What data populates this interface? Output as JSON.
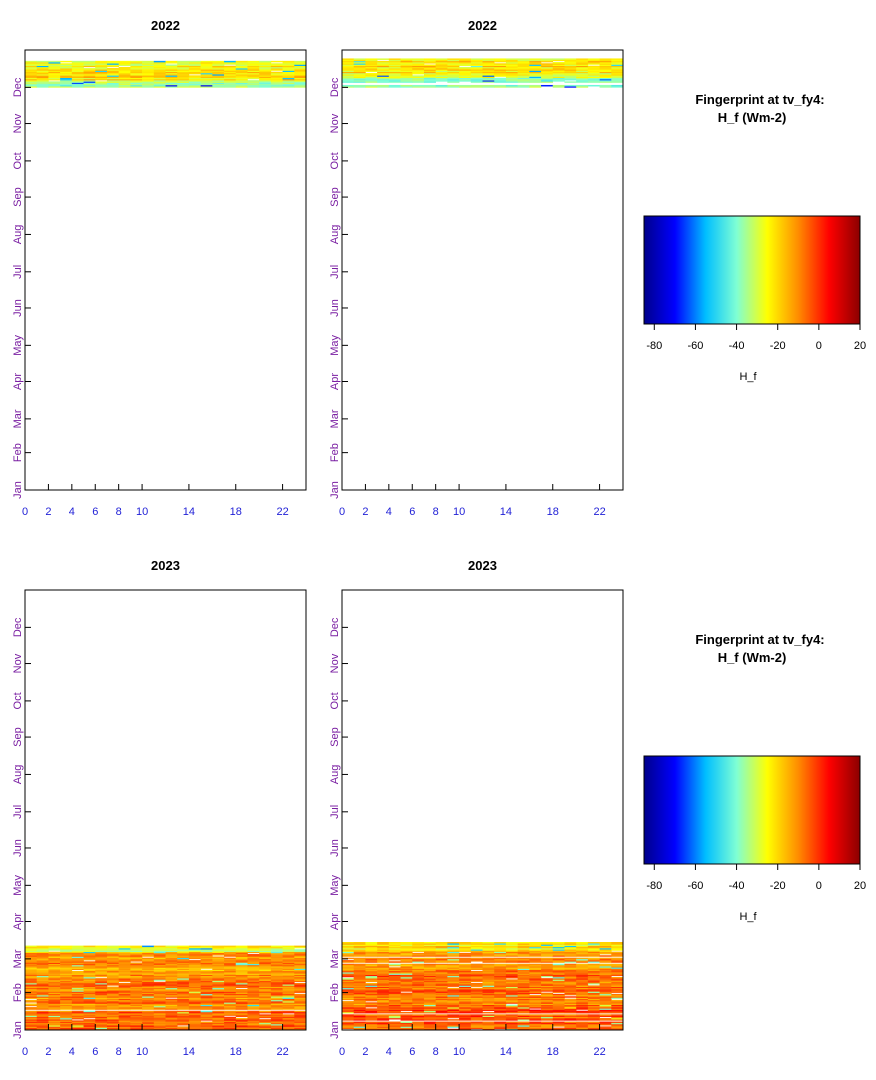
{
  "chart_data": [
    {
      "type": "heatmap",
      "title": "2022",
      "xlabel": "",
      "ylabel": "",
      "x_ticks": [
        "0",
        "2",
        "4",
        "6",
        "8",
        "10",
        "14",
        "18",
        "22"
      ],
      "y_ticks": [
        "Jan",
        "Feb",
        "Mar",
        "Apr",
        "May",
        "Jun",
        "Jul",
        "Aug",
        "Sep",
        "Oct",
        "Nov",
        "Dec"
      ],
      "xlim": [
        0,
        24
      ],
      "ylim": [
        0,
        365
      ],
      "grid": false,
      "data_day_range": [
        334,
        356
      ],
      "value_profile": [
        {
          "day_from": 334,
          "day_to": 340,
          "value": -35
        },
        {
          "day_from": 340,
          "day_to": 348,
          "value": -22
        },
        {
          "day_from": 348,
          "day_to": 356,
          "value": -25
        }
      ]
    },
    {
      "type": "heatmap",
      "title": "2022",
      "xlabel": "",
      "ylabel": "",
      "x_ticks": [
        "0",
        "2",
        "4",
        "6",
        "8",
        "10",
        "14",
        "18",
        "22"
      ],
      "y_ticks": [
        "Jan",
        "Feb",
        "Mar",
        "Apr",
        "May",
        "Jun",
        "Jul",
        "Aug",
        "Sep",
        "Oct",
        "Nov",
        "Dec"
      ],
      "xlim": [
        0,
        24
      ],
      "ylim": [
        0,
        365
      ],
      "grid": false,
      "data_day_range": [
        334,
        358
      ],
      "value_profile": [
        {
          "day_from": 334,
          "day_to": 342,
          "value": -38
        },
        {
          "day_from": 342,
          "day_to": 350,
          "value": -24
        },
        {
          "day_from": 350,
          "day_to": 358,
          "value": -22
        }
      ]
    },
    {
      "type": "heatmap",
      "title": "2023",
      "xlabel": "",
      "ylabel": "",
      "x_ticks": [
        "0",
        "2",
        "4",
        "6",
        "8",
        "10",
        "14",
        "18",
        "22"
      ],
      "y_ticks": [
        "Jan",
        "Feb",
        "Mar",
        "Apr",
        "May",
        "Jun",
        "Jul",
        "Aug",
        "Sep",
        "Oct",
        "Nov",
        "Dec"
      ],
      "xlim": [
        0,
        24
      ],
      "ylim": [
        0,
        365
      ],
      "grid": false,
      "data_day_range": [
        0,
        70
      ],
      "value_profile": [
        {
          "day_from": 0,
          "day_to": 15,
          "value": -5
        },
        {
          "day_from": 15,
          "day_to": 45,
          "value": -8
        },
        {
          "day_from": 45,
          "day_to": 65,
          "value": -12
        },
        {
          "day_from": 65,
          "day_to": 70,
          "value": -28
        }
      ]
    },
    {
      "type": "heatmap",
      "title": "2023",
      "xlabel": "",
      "ylabel": "",
      "x_ticks": [
        "0",
        "2",
        "4",
        "6",
        "8",
        "10",
        "14",
        "18",
        "22"
      ],
      "y_ticks": [
        "Jan",
        "Feb",
        "Mar",
        "Apr",
        "May",
        "Jun",
        "Jul",
        "Aug",
        "Sep",
        "Oct",
        "Nov",
        "Dec"
      ],
      "xlim": [
        0,
        24
      ],
      "ylim": [
        0,
        365
      ],
      "grid": false,
      "data_day_range": [
        0,
        73
      ],
      "value_profile": [
        {
          "day_from": 0,
          "day_to": 20,
          "value": -4
        },
        {
          "day_from": 20,
          "day_to": 50,
          "value": -7
        },
        {
          "day_from": 50,
          "day_to": 66,
          "value": -12
        },
        {
          "day_from": 66,
          "day_to": 73,
          "value": -22
        }
      ]
    }
  ],
  "colorbars": [
    {
      "title_line1": "Fingerprint at tv_fy4:",
      "title_line2": "H_f (Wm-2)",
      "label": "H_f",
      "range": [
        -85,
        20
      ],
      "ticks": [
        "-80",
        "-60",
        "-40",
        "-20",
        "0",
        "20"
      ],
      "colors": [
        "#00008b",
        "#0000ff",
        "#00bfff",
        "#7fffd4",
        "#ffff00",
        "#ff8c00",
        "#ff0000",
        "#8b0000"
      ]
    },
    {
      "title_line1": "Fingerprint at tv_fy4:",
      "title_line2": "H_f (Wm-2)",
      "label": "H_f",
      "range": [
        -85,
        20
      ],
      "ticks": [
        "-80",
        "-60",
        "-40",
        "-20",
        "0",
        "20"
      ],
      "colors": [
        "#00008b",
        "#0000ff",
        "#00bfff",
        "#7fffd4",
        "#ffff00",
        "#ff8c00",
        "#ff0000",
        "#8b0000"
      ]
    }
  ]
}
